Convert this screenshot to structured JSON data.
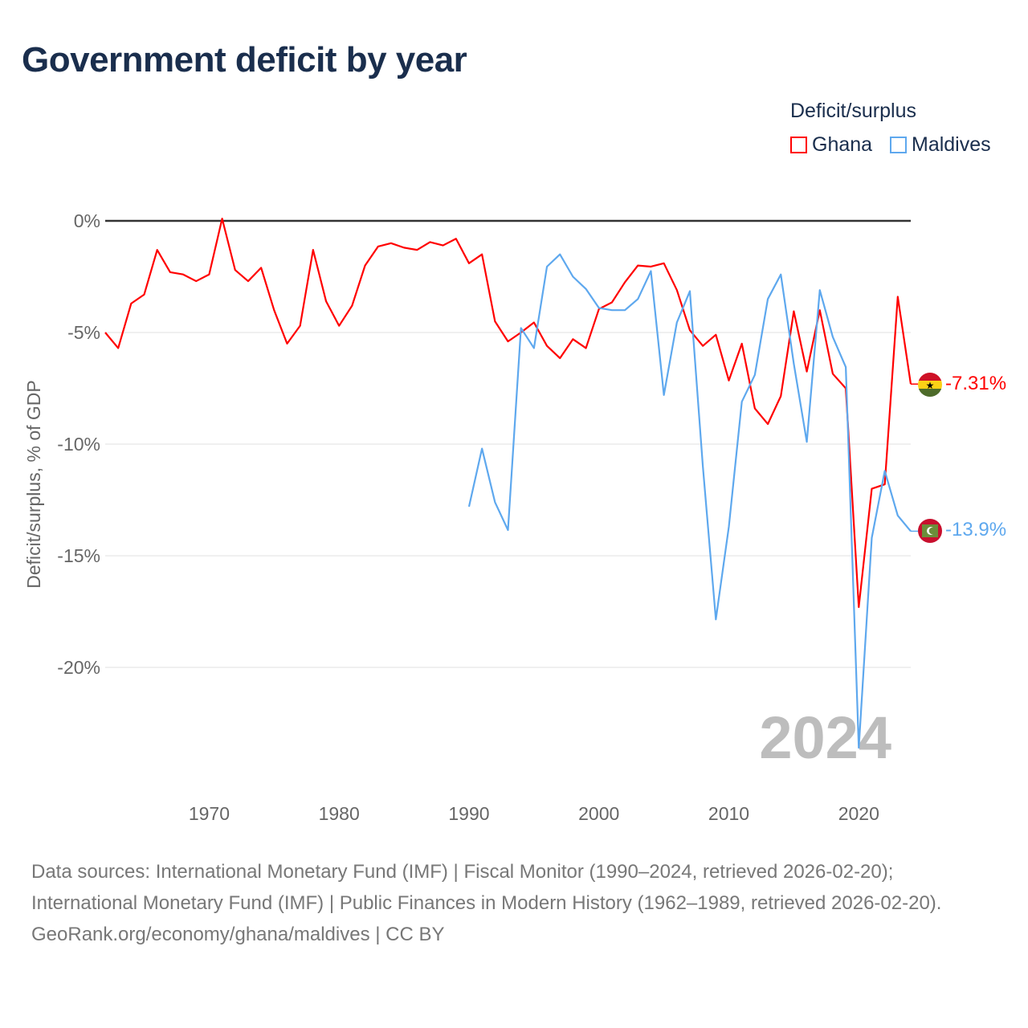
{
  "title": "Government deficit by year",
  "legend": {
    "title": "Deficit/surplus",
    "items": [
      {
        "label": "Ghana",
        "color": "#ff0000"
      },
      {
        "label": "Maldives",
        "color": "#5ea8ee"
      }
    ]
  },
  "year_watermark": "2024",
  "footer": {
    "sources": "Data sources: International Monetary Fund (IMF) | Fiscal Monitor (1990–2024, retrieved 2026-02-20); International Monetary Fund (IMF) | Public Finances in Modern History (1962–1989, retrieved 2026-02-20).",
    "credit": "GeoRank.org/economy/ghana/maldives | CC BY"
  },
  "chart_data": {
    "type": "line",
    "title": "Government deficit by year",
    "xlabel": "",
    "ylabel": "Deficit/surplus, % of GDP",
    "xlim": [
      1962,
      2024
    ],
    "ylim": [
      -25,
      0
    ],
    "xticks": [
      1970,
      1980,
      1990,
      2000,
      2010,
      2020
    ],
    "yticks": [
      {
        "v": 0,
        "label": "0%"
      },
      {
        "v": -5,
        "label": "-5%"
      },
      {
        "v": -10,
        "label": "-10%"
      },
      {
        "v": -15,
        "label": "-15%"
      },
      {
        "v": -20,
        "label": "-20%"
      }
    ],
    "grid": true,
    "legend_position": "top-right",
    "series": [
      {
        "name": "Ghana",
        "color": "#ff0000",
        "start_year": 1962,
        "end_label": "-7.31%",
        "values": [
          -5.0,
          -5.7,
          -3.7,
          -3.3,
          -1.3,
          -2.3,
          -2.4,
          -2.7,
          -2.4,
          0.1,
          -2.2,
          -2.7,
          -2.1,
          -4.0,
          -5.5,
          -4.7,
          -1.3,
          -3.6,
          -4.7,
          -3.8,
          -2.0,
          -1.15,
          -1.0,
          -1.2,
          -1.3,
          -0.95,
          -1.1,
          -0.8,
          -1.9,
          -1.5,
          -4.5,
          -5.4,
          -5.0,
          -4.55,
          -5.6,
          -6.15,
          -5.3,
          -5.7,
          -3.95,
          -3.65,
          -2.75,
          -2.0,
          -2.05,
          -1.9,
          -3.1,
          -4.9,
          -5.6,
          -5.1,
          -7.15,
          -5.5,
          -8.4,
          -9.1,
          -7.85,
          -4.05,
          -6.75,
          -4.0,
          -6.85,
          -7.5,
          -17.3,
          -12.0,
          -11.8,
          -3.4,
          -7.31
        ]
      },
      {
        "name": "Maldives",
        "color": "#5ea8ee",
        "start_year": 1990,
        "end_label": "-13.9%",
        "values": [
          -12.8,
          -10.2,
          -12.6,
          -13.85,
          -4.8,
          -5.7,
          -2.05,
          -1.5,
          -2.5,
          -3.05,
          -3.9,
          -4.0,
          -4.0,
          -3.5,
          -2.25,
          -7.8,
          -4.55,
          -3.15,
          -11.0,
          -17.85,
          -13.7,
          -8.1,
          -6.9,
          -3.5,
          -2.4,
          -6.4,
          -9.9,
          -3.1,
          -5.2,
          -6.55,
          -23.6,
          -14.2,
          -11.2,
          -13.2,
          -13.9
        ]
      }
    ]
  }
}
